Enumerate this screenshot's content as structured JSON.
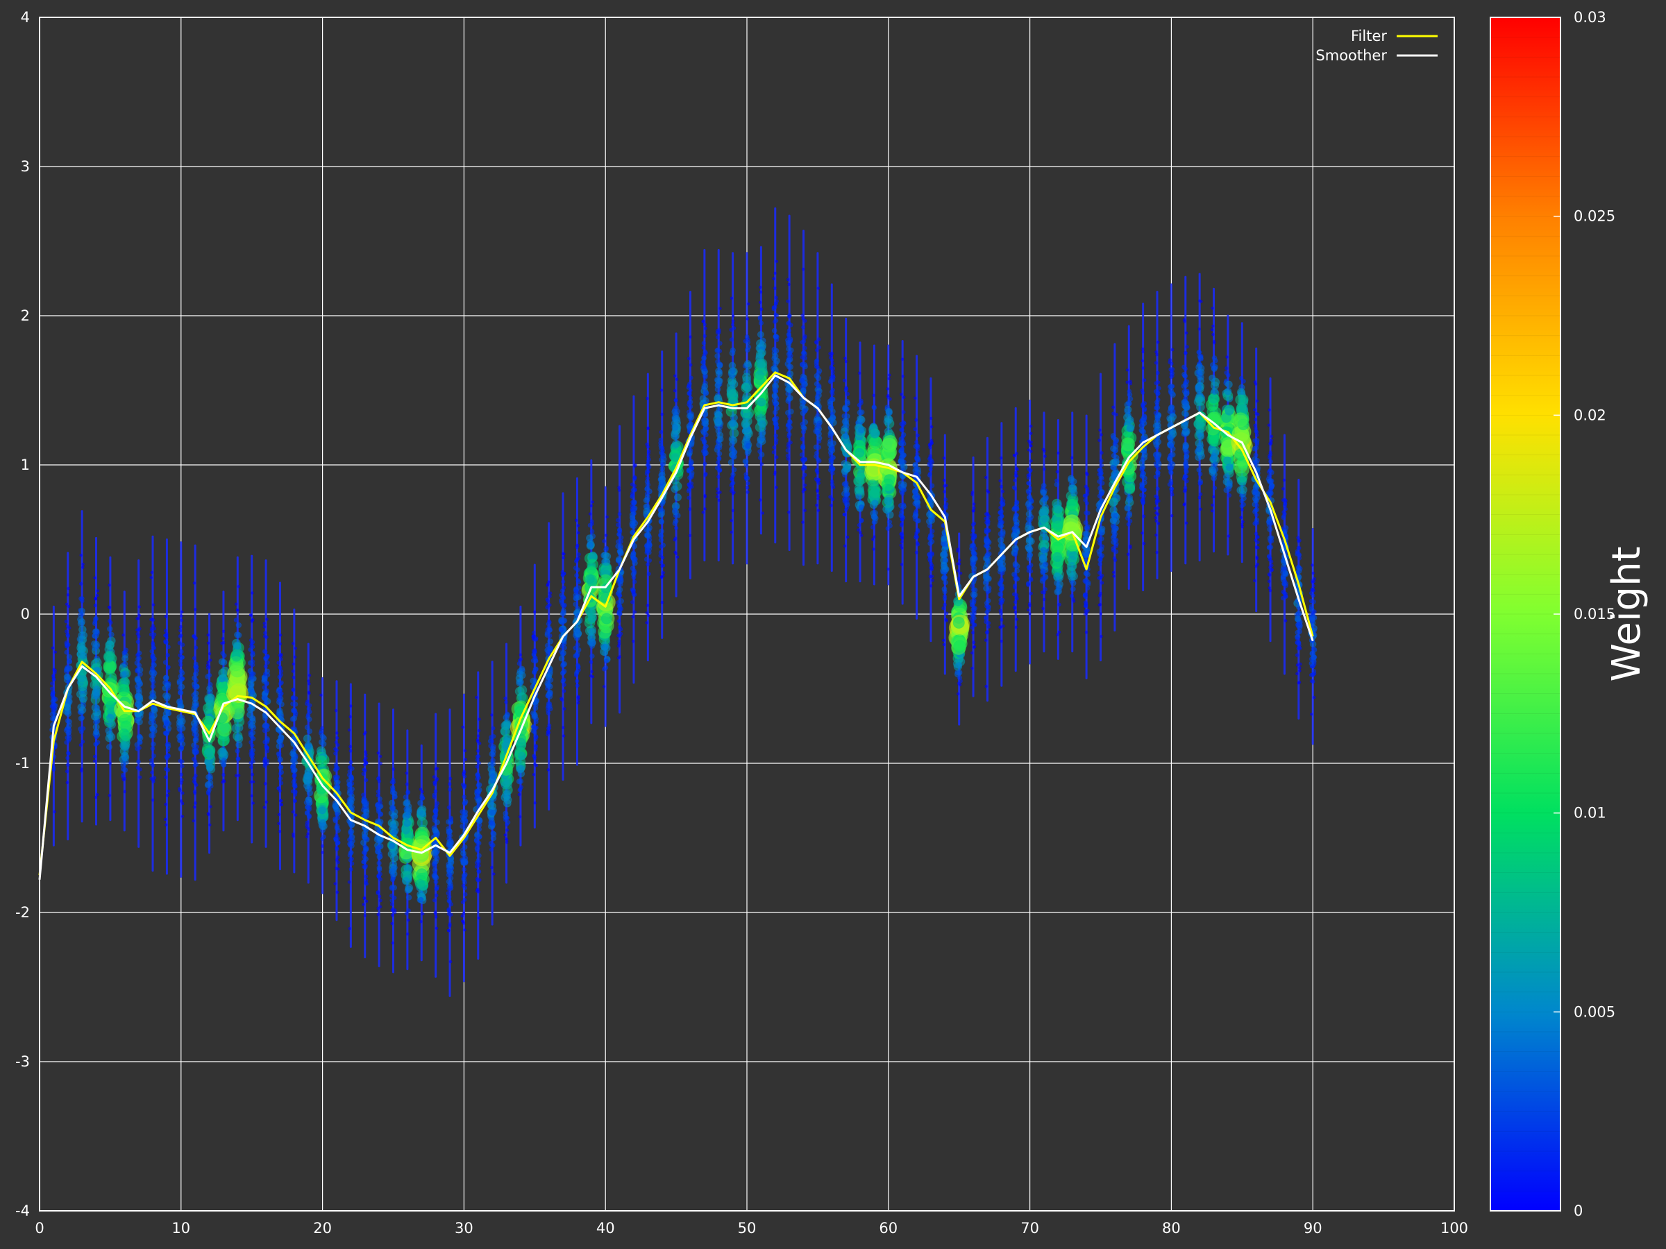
{
  "chart_data": {
    "type": "scatter",
    "title": "",
    "xlabel": "",
    "ylabel": "",
    "xlim": [
      0,
      100
    ],
    "ylim": [
      -4,
      4
    ],
    "x_ticks": [
      "0",
      "10",
      "20",
      "30",
      "40",
      "50",
      "60",
      "70",
      "80",
      "90",
      "100"
    ],
    "y_ticks": [
      "-4",
      "-3",
      "-2",
      "-1",
      "0",
      "1",
      "2",
      "3",
      "4"
    ],
    "grid": true,
    "background": "#333333",
    "legend": {
      "placement": "top-right",
      "entries": [
        {
          "name": "Filter",
          "color": "#ffff00"
        },
        {
          "name": "Smoother",
          "color": "#ffffff"
        }
      ]
    },
    "colorbar": {
      "title": "Weight",
      "min": 0,
      "max": 0.03,
      "ticks": [
        "0",
        "0.005",
        "0.01",
        "0.015",
        "0.02",
        "0.025",
        "0.03"
      ],
      "colormap": [
        "#0000ff",
        "#0088cc",
        "#00e060",
        "#80ff30",
        "#ffe000",
        "#ff8000",
        "#ff0000"
      ]
    },
    "particle_columns": [
      {
        "x": 1,
        "center": -0.75,
        "spread": 0.5,
        "hot": 0
      },
      {
        "x": 2,
        "center": -0.55,
        "spread": 0.6,
        "hot": 0.1
      },
      {
        "x": 3,
        "center": -0.35,
        "spread": 0.65,
        "hot": 0.3
      },
      {
        "x": 4,
        "center": -0.45,
        "spread": 0.6,
        "hot": 0.3
      },
      {
        "x": 5,
        "center": -0.5,
        "spread": 0.55,
        "hot": 0.6
      },
      {
        "x": 6,
        "center": -0.65,
        "spread": 0.5,
        "hot": 0.7
      },
      {
        "x": 7,
        "center": -0.6,
        "spread": 0.6,
        "hot": 0.1
      },
      {
        "x": 8,
        "center": -0.6,
        "spread": 0.7,
        "hot": 0.05
      },
      {
        "x": 9,
        "center": -0.62,
        "spread": 0.7,
        "hot": 0.05
      },
      {
        "x": 10,
        "center": -0.64,
        "spread": 0.7,
        "hot": 0.05
      },
      {
        "x": 11,
        "center": -0.66,
        "spread": 0.7,
        "hot": 0.05
      },
      {
        "x": 12,
        "center": -0.8,
        "spread": 0.5,
        "hot": 0.5
      },
      {
        "x": 13,
        "center": -0.65,
        "spread": 0.5,
        "hot": 0.7
      },
      {
        "x": 14,
        "center": -0.5,
        "spread": 0.55,
        "hot": 0.8
      },
      {
        "x": 15,
        "center": -0.57,
        "spread": 0.6,
        "hot": 0.1
      },
      {
        "x": 16,
        "center": -0.6,
        "spread": 0.6,
        "hot": 0.05
      },
      {
        "x": 17,
        "center": -0.75,
        "spread": 0.6,
        "hot": 0.05
      },
      {
        "x": 18,
        "center": -0.85,
        "spread": 0.55,
        "hot": 0.05
      },
      {
        "x": 19,
        "center": -1.0,
        "spread": 0.5,
        "hot": 0.3
      },
      {
        "x": 20,
        "center": -1.15,
        "spread": 0.45,
        "hot": 0.6
      },
      {
        "x": 21,
        "center": -1.25,
        "spread": 0.5,
        "hot": 0.05
      },
      {
        "x": 22,
        "center": -1.35,
        "spread": 0.55,
        "hot": 0.05
      },
      {
        "x": 23,
        "center": -1.42,
        "spread": 0.55,
        "hot": 0.05
      },
      {
        "x": 24,
        "center": -1.48,
        "spread": 0.55,
        "hot": 0.05
      },
      {
        "x": 25,
        "center": -1.52,
        "spread": 0.55,
        "hot": 0.2
      },
      {
        "x": 26,
        "center": -1.58,
        "spread": 0.5,
        "hot": 0.5
      },
      {
        "x": 27,
        "center": -1.6,
        "spread": 0.45,
        "hot": 0.8
      },
      {
        "x": 28,
        "center": -1.55,
        "spread": 0.55,
        "hot": 0.05
      },
      {
        "x": 29,
        "center": -1.6,
        "spread": 0.6,
        "hot": 0.05
      },
      {
        "x": 30,
        "center": -1.5,
        "spread": 0.6,
        "hot": 0.05
      },
      {
        "x": 31,
        "center": -1.35,
        "spread": 0.6,
        "hot": 0.05
      },
      {
        "x": 32,
        "center": -1.2,
        "spread": 0.55,
        "hot": 0.2
      },
      {
        "x": 33,
        "center": -1.0,
        "spread": 0.5,
        "hot": 0.5
      },
      {
        "x": 34,
        "center": -0.75,
        "spread": 0.5,
        "hot": 0.75
      },
      {
        "x": 35,
        "center": -0.55,
        "spread": 0.55,
        "hot": 0.05
      },
      {
        "x": 36,
        "center": -0.35,
        "spread": 0.6,
        "hot": 0.05
      },
      {
        "x": 37,
        "center": -0.15,
        "spread": 0.6,
        "hot": 0.05
      },
      {
        "x": 38,
        "center": -0.05,
        "spread": 0.6,
        "hot": 0.1
      },
      {
        "x": 39,
        "center": 0.15,
        "spread": 0.55,
        "hot": 0.6
      },
      {
        "x": 40,
        "center": 0.05,
        "spread": 0.5,
        "hot": 0.75
      },
      {
        "x": 41,
        "center": 0.3,
        "spread": 0.6,
        "hot": 0.05
      },
      {
        "x": 42,
        "center": 0.5,
        "spread": 0.6,
        "hot": 0.05
      },
      {
        "x": 43,
        "center": 0.65,
        "spread": 0.6,
        "hot": 0.05
      },
      {
        "x": 44,
        "center": 0.8,
        "spread": 0.6,
        "hot": 0.1
      },
      {
        "x": 45,
        "center": 1.0,
        "spread": 0.55,
        "hot": 0.4
      },
      {
        "x": 46,
        "center": 1.2,
        "spread": 0.6,
        "hot": 0.05
      },
      {
        "x": 47,
        "center": 1.4,
        "spread": 0.65,
        "hot": 0.1
      },
      {
        "x": 48,
        "center": 1.4,
        "spread": 0.65,
        "hot": 0.15
      },
      {
        "x": 49,
        "center": 1.38,
        "spread": 0.65,
        "hot": 0.3
      },
      {
        "x": 50,
        "center": 1.38,
        "spread": 0.65,
        "hot": 0.3
      },
      {
        "x": 51,
        "center": 1.5,
        "spread": 0.6,
        "hot": 0.5
      },
      {
        "x": 52,
        "center": 1.6,
        "spread": 0.7,
        "hot": 0.05
      },
      {
        "x": 53,
        "center": 1.55,
        "spread": 0.7,
        "hot": 0.05
      },
      {
        "x": 54,
        "center": 1.45,
        "spread": 0.7,
        "hot": 0.05
      },
      {
        "x": 55,
        "center": 1.38,
        "spread": 0.65,
        "hot": 0.05
      },
      {
        "x": 56,
        "center": 1.25,
        "spread": 0.6,
        "hot": 0.05
      },
      {
        "x": 57,
        "center": 1.1,
        "spread": 0.55,
        "hot": 0.2
      },
      {
        "x": 58,
        "center": 1.02,
        "spread": 0.5,
        "hot": 0.5
      },
      {
        "x": 59,
        "center": 1.0,
        "spread": 0.5,
        "hot": 0.7
      },
      {
        "x": 60,
        "center": 1.0,
        "spread": 0.5,
        "hot": 0.8
      },
      {
        "x": 61,
        "center": 0.95,
        "spread": 0.55,
        "hot": 0.05
      },
      {
        "x": 62,
        "center": 0.85,
        "spread": 0.55,
        "hot": 0.05
      },
      {
        "x": 63,
        "center": 0.7,
        "spread": 0.55,
        "hot": 0.05
      },
      {
        "x": 64,
        "center": 0.4,
        "spread": 0.5,
        "hot": 0.1
      },
      {
        "x": 65,
        "center": -0.1,
        "spread": 0.4,
        "hot": 0.8
      },
      {
        "x": 66,
        "center": 0.25,
        "spread": 0.5,
        "hot": 0.05
      },
      {
        "x": 67,
        "center": 0.3,
        "spread": 0.55,
        "hot": 0.05
      },
      {
        "x": 68,
        "center": 0.4,
        "spread": 0.55,
        "hot": 0.05
      },
      {
        "x": 69,
        "center": 0.5,
        "spread": 0.55,
        "hot": 0.05
      },
      {
        "x": 70,
        "center": 0.55,
        "spread": 0.55,
        "hot": 0.1
      },
      {
        "x": 71,
        "center": 0.55,
        "spread": 0.5,
        "hot": 0.3
      },
      {
        "x": 72,
        "center": 0.5,
        "spread": 0.5,
        "hot": 0.6
      },
      {
        "x": 73,
        "center": 0.55,
        "spread": 0.5,
        "hot": 0.7
      },
      {
        "x": 74,
        "center": 0.45,
        "spread": 0.55,
        "hot": 0.05
      },
      {
        "x": 75,
        "center": 0.65,
        "spread": 0.6,
        "hot": 0.05
      },
      {
        "x": 76,
        "center": 0.85,
        "spread": 0.6,
        "hot": 0.2
      },
      {
        "x": 77,
        "center": 1.05,
        "spread": 0.55,
        "hot": 0.55
      },
      {
        "x": 78,
        "center": 1.12,
        "spread": 0.6,
        "hot": 0.05
      },
      {
        "x": 79,
        "center": 1.2,
        "spread": 0.6,
        "hot": 0.05
      },
      {
        "x": 80,
        "center": 1.25,
        "spread": 0.6,
        "hot": 0.1
      },
      {
        "x": 81,
        "center": 1.3,
        "spread": 0.6,
        "hot": 0.1
      },
      {
        "x": 82,
        "center": 1.32,
        "spread": 0.6,
        "hot": 0.3
      },
      {
        "x": 83,
        "center": 1.3,
        "spread": 0.55,
        "hot": 0.5
      },
      {
        "x": 84,
        "center": 1.2,
        "spread": 0.5,
        "hot": 0.7
      },
      {
        "x": 85,
        "center": 1.15,
        "spread": 0.5,
        "hot": 0.85
      },
      {
        "x": 86,
        "center": 0.9,
        "spread": 0.55,
        "hot": 0.05
      },
      {
        "x": 87,
        "center": 0.7,
        "spread": 0.55,
        "hot": 0.05
      },
      {
        "x": 88,
        "center": 0.4,
        "spread": 0.5,
        "hot": 0.05
      },
      {
        "x": 89,
        "center": 0.1,
        "spread": 0.5,
        "hot": 0.1
      },
      {
        "x": 90,
        "center": -0.15,
        "spread": 0.45,
        "hot": 0.05
      }
    ],
    "series": [
      {
        "name": "Filter",
        "color": "#ffff00",
        "x": [
          0,
          1,
          2,
          3,
          4,
          5,
          6,
          7,
          8,
          9,
          10,
          11,
          12,
          13,
          14,
          15,
          16,
          17,
          18,
          19,
          20,
          21,
          22,
          23,
          24,
          25,
          26,
          27,
          28,
          29,
          30,
          31,
          32,
          33,
          34,
          35,
          36,
          37,
          38,
          39,
          40,
          41,
          42,
          43,
          44,
          45,
          46,
          47,
          48,
          49,
          50,
          51,
          52,
          53,
          54,
          55,
          56,
          57,
          58,
          59,
          60,
          61,
          62,
          63,
          64,
          65,
          66,
          67,
          68,
          69,
          70,
          71,
          72,
          73,
          74,
          75,
          76,
          77,
          78,
          79,
          80,
          81,
          82,
          83,
          84,
          85,
          86,
          87,
          88,
          89,
          90
        ],
        "y": [
          -1.75,
          -0.85,
          -0.5,
          -0.32,
          -0.4,
          -0.5,
          -0.65,
          -0.65,
          -0.6,
          -0.63,
          -0.65,
          -0.67,
          -0.8,
          -0.62,
          -0.55,
          -0.56,
          -0.62,
          -0.72,
          -0.8,
          -0.95,
          -1.1,
          -1.2,
          -1.33,
          -1.38,
          -1.42,
          -1.5,
          -1.55,
          -1.58,
          -1.5,
          -1.62,
          -1.5,
          -1.35,
          -1.2,
          -0.95,
          -0.7,
          -0.5,
          -0.3,
          -0.15,
          -0.05,
          0.12,
          0.05,
          0.3,
          0.52,
          0.65,
          0.8,
          0.98,
          1.2,
          1.4,
          1.42,
          1.4,
          1.42,
          1.52,
          1.62,
          1.58,
          1.45,
          1.38,
          1.25,
          1.1,
          1.0,
          1.0,
          0.98,
          0.95,
          0.88,
          0.7,
          0.62,
          0.1,
          0.25,
          0.3,
          0.4,
          0.5,
          0.55,
          0.58,
          0.5,
          0.55,
          0.3,
          0.65,
          0.85,
          1.02,
          1.12,
          1.2,
          1.25,
          1.3,
          1.35,
          1.25,
          1.22,
          1.1,
          0.9,
          0.75,
          0.5,
          0.2,
          -0.15
        ]
      },
      {
        "name": "Smoother",
        "color": "#ffffff",
        "x": [
          0,
          1,
          2,
          3,
          4,
          5,
          6,
          7,
          8,
          9,
          10,
          11,
          12,
          13,
          14,
          15,
          16,
          17,
          18,
          19,
          20,
          21,
          22,
          23,
          24,
          25,
          26,
          27,
          28,
          29,
          30,
          31,
          32,
          33,
          34,
          35,
          36,
          37,
          38,
          39,
          40,
          41,
          42,
          43,
          44,
          45,
          46,
          47,
          48,
          49,
          50,
          51,
          52,
          53,
          54,
          55,
          56,
          57,
          58,
          59,
          60,
          61,
          62,
          63,
          64,
          65,
          66,
          67,
          68,
          69,
          70,
          71,
          72,
          73,
          74,
          75,
          76,
          77,
          78,
          79,
          80,
          81,
          82,
          83,
          84,
          85,
          86,
          87,
          88,
          89,
          90
        ],
        "y": [
          -1.78,
          -0.75,
          -0.5,
          -0.35,
          -0.42,
          -0.53,
          -0.62,
          -0.65,
          -0.58,
          -0.62,
          -0.64,
          -0.66,
          -0.85,
          -0.6,
          -0.57,
          -0.6,
          -0.66,
          -0.76,
          -0.86,
          -1.0,
          -1.15,
          -1.25,
          -1.38,
          -1.42,
          -1.48,
          -1.52,
          -1.58,
          -1.6,
          -1.55,
          -1.6,
          -1.48,
          -1.32,
          -1.18,
          -1.0,
          -0.78,
          -0.55,
          -0.35,
          -0.15,
          -0.05,
          0.18,
          0.18,
          0.3,
          0.5,
          0.62,
          0.78,
          0.95,
          1.18,
          1.38,
          1.4,
          1.38,
          1.38,
          1.48,
          1.6,
          1.55,
          1.45,
          1.38,
          1.25,
          1.1,
          1.02,
          1.02,
          1.0,
          0.95,
          0.92,
          0.8,
          0.65,
          0.12,
          0.25,
          0.3,
          0.4,
          0.5,
          0.55,
          0.58,
          0.52,
          0.55,
          0.45,
          0.7,
          0.88,
          1.05,
          1.15,
          1.2,
          1.25,
          1.3,
          1.35,
          1.28,
          1.2,
          1.15,
          0.95,
          0.7,
          0.4,
          0.1,
          -0.18
        ]
      }
    ]
  }
}
